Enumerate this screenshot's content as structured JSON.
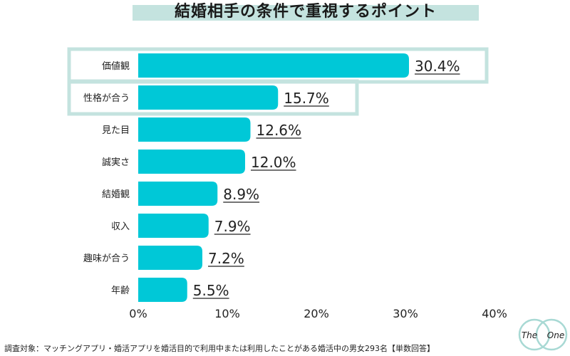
{
  "title": "結婚相手の条件で重視するポイント",
  "footer_note": "調査対象：マッチングアプリ・婚活アプリを婚活目的で利用中または利用したことがある婚活中の男女293名【単数回答】",
  "logo": {
    "left": "The",
    "right": "One"
  },
  "colors": {
    "bar": "#00c8d7",
    "highlight": "#c4e3df"
  },
  "chart_data": {
    "type": "bar",
    "orientation": "horizontal",
    "categories": [
      "価値観",
      "性格が合う",
      "見た目",
      "誠実さ",
      "結婚観",
      "収入",
      "趣味が合う",
      "年齢"
    ],
    "values": [
      30.4,
      15.7,
      12.6,
      12.0,
      8.9,
      7.9,
      7.2,
      5.5
    ],
    "value_labels": [
      "30.4%",
      "15.7%",
      "12.6%",
      "12.0%",
      "8.9%",
      "7.9%",
      "7.2%",
      "5.5%"
    ],
    "highlighted": [
      "価値観",
      "性格が合う"
    ],
    "xlim": [
      0,
      40
    ],
    "xticks": [
      "0%",
      "10%",
      "20%",
      "30%",
      "40%"
    ],
    "grid": false,
    "legend": "none"
  }
}
